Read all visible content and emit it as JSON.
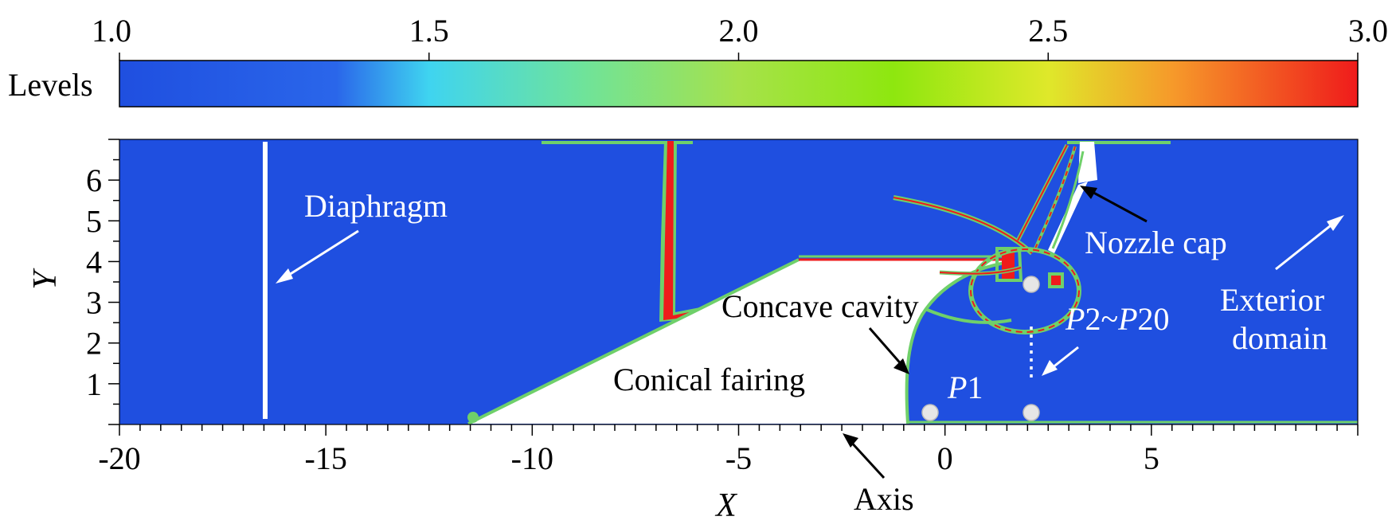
{
  "colorbar": {
    "title": "Levels",
    "ticks": [
      "1.0",
      "1.5",
      "2.0",
      "2.5",
      "3.0"
    ],
    "min": 1.0,
    "max": 3.0,
    "stops": [
      {
        "value": 1.0,
        "color": "#1f4fe0"
      },
      {
        "value": 1.35,
        "color": "#2a66ea"
      },
      {
        "value": 1.5,
        "color": "#3fd4f0"
      },
      {
        "value": 1.75,
        "color": "#6fe39a"
      },
      {
        "value": 2.0,
        "color": "#a6e24a"
      },
      {
        "value": 2.25,
        "color": "#8ee70f"
      },
      {
        "value": 2.5,
        "color": "#dfe82a"
      },
      {
        "value": 2.7,
        "color": "#f69a2a"
      },
      {
        "value": 3.0,
        "color": "#ef1b1b"
      }
    ]
  },
  "plot": {
    "x_title": "X",
    "y_title": "Y",
    "x_ticks": [
      "-20",
      "-15",
      "-10",
      "-5",
      "0",
      "5"
    ],
    "y_ticks": [
      "1",
      "2",
      "3",
      "4",
      "5",
      "6"
    ],
    "x_range": [
      -20,
      10
    ],
    "y_range": [
      0,
      7
    ],
    "background_color": "#1f4fe0"
  },
  "annotations": {
    "diaphragm": "Diaphragm",
    "nozzle_cap": "Nozzle cap",
    "exterior_line1": "Exterior",
    "exterior_line2": "domain",
    "concave_cavity": "Concave cavity",
    "conical_fairing": "Conical fairing",
    "axis": "Axis",
    "p1_letter": "P",
    "p1_number": "1",
    "p2_letter1": "P",
    "p2_mid": "2~",
    "p2_letter2": "P",
    "p2_number": "20"
  }
}
